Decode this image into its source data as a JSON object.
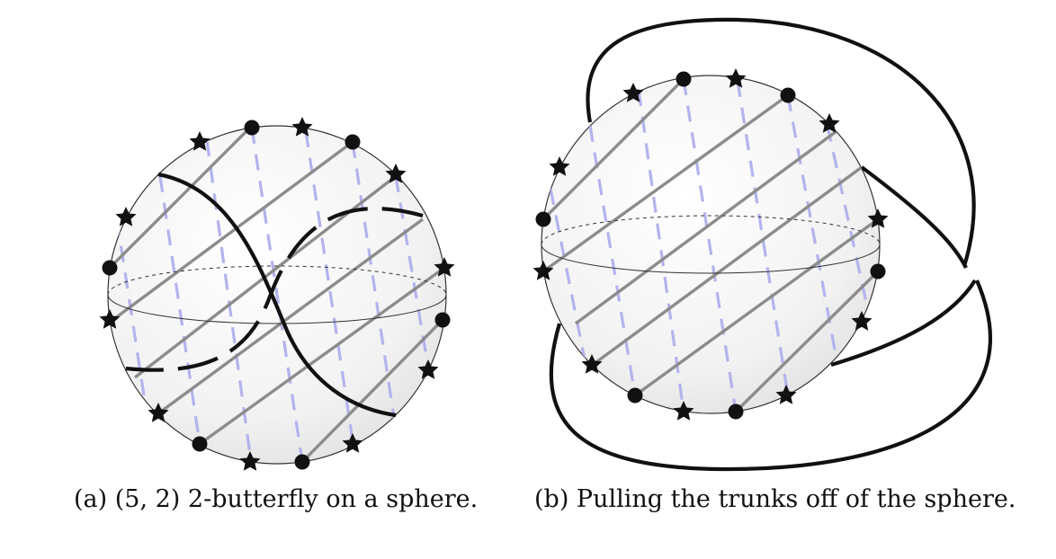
{
  "figure": {
    "panel_a": {
      "caption": "(a) (5, 2) 2-butterfly on a sphere."
    },
    "panel_b": {
      "caption": "(b) Pulling the trunks off of the sphere."
    }
  },
  "colors": {
    "front_strand": "#8c8c8c",
    "back_strand": "#b6b6ee",
    "trunk": "#111111",
    "sphere_outline": "#333333",
    "sphere_fill": "#f4f4f4"
  }
}
